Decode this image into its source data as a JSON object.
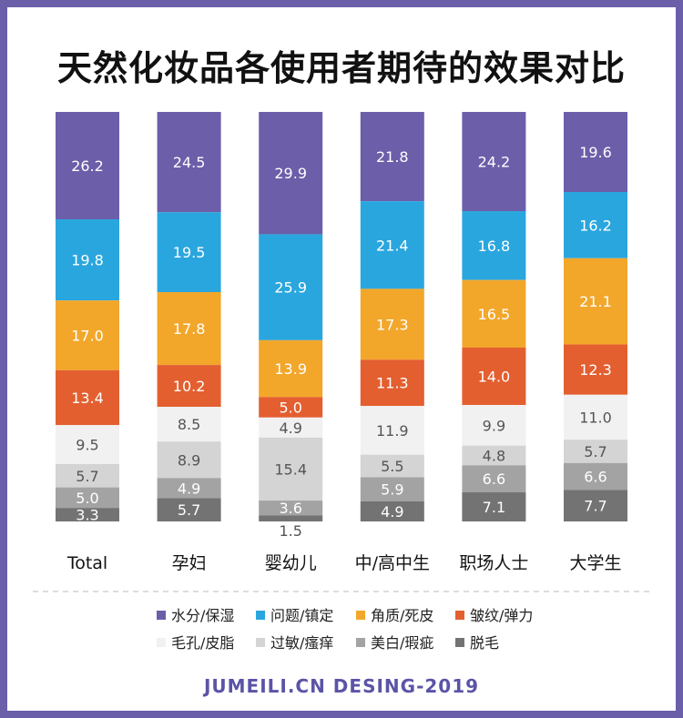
{
  "title": "天然化妆品各使用者期待的效果对比",
  "footer": "JUMEILI.CN DESING-2019",
  "chart_data": {
    "type": "bar",
    "stacked": true,
    "title": "天然化妆品各使用者期待的效果对比",
    "categories": [
      "Total",
      "孕妇",
      "婴幼儿",
      "中/高中生",
      "职场人士",
      "大学生"
    ],
    "series": [
      {
        "name": "水分/保湿",
        "color": "#6c5ea9",
        "label_color": "#ffffff",
        "values": [
          26.2,
          24.5,
          29.9,
          21.8,
          24.2,
          19.6
        ]
      },
      {
        "name": "问题/镇定",
        "color": "#2aa6de",
        "label_color": "#ffffff",
        "values": [
          19.8,
          19.5,
          25.9,
          21.4,
          16.8,
          16.2
        ]
      },
      {
        "name": "角质/死皮",
        "color": "#f2a72b",
        "label_color": "#ffffff",
        "values": [
          17.0,
          17.8,
          13.9,
          17.3,
          16.5,
          21.1
        ]
      },
      {
        "name": "皱纹/弹力",
        "color": "#e35f30",
        "label_color": "#ffffff",
        "values": [
          13.4,
          10.2,
          5.0,
          11.3,
          14.0,
          12.3
        ]
      },
      {
        "name": "毛孔/皮脂",
        "color": "#f1f1f1",
        "label_color": "#555555",
        "values": [
          9.5,
          8.5,
          4.9,
          11.9,
          9.9,
          11.0
        ]
      },
      {
        "name": "过敏/瘙痒",
        "color": "#d4d4d4",
        "label_color": "#555555",
        "values": [
          5.7,
          8.9,
          15.4,
          5.5,
          4.8,
          5.7
        ]
      },
      {
        "name": "美白/瑕疵",
        "color": "#a3a3a3",
        "label_color": "#ffffff",
        "values": [
          5.0,
          4.9,
          3.6,
          5.9,
          6.6,
          6.6
        ]
      },
      {
        "name": "脱毛",
        "color": "#737373",
        "label_color": "#ffffff",
        "values": [
          3.3,
          5.7,
          1.5,
          4.9,
          7.1,
          7.7
        ]
      }
    ]
  }
}
